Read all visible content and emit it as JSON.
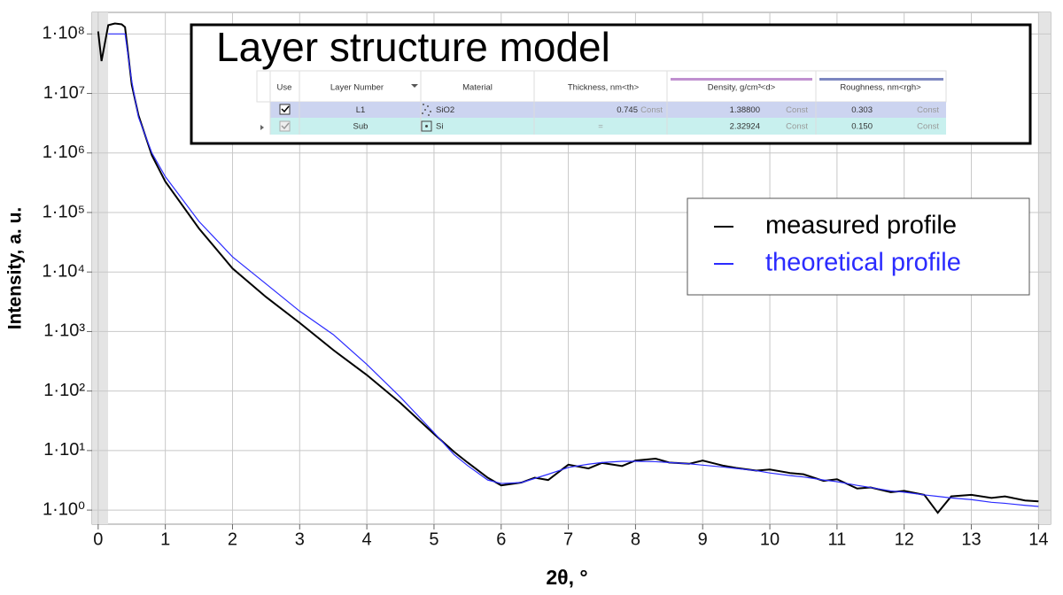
{
  "chart_data": {
    "type": "line",
    "xlabel": "2θ, °",
    "ylabel": "Intensity, a. u.",
    "log_y": true,
    "grid": true,
    "legend": "upper right",
    "xlim": [
      -0.09,
      14.18
    ],
    "ylim": [
      0.58,
      230000000
    ],
    "xticks": [
      0,
      1,
      2,
      3,
      4,
      5,
      6,
      7,
      8,
      9,
      10,
      11,
      12,
      13,
      14
    ],
    "yticks": [
      {
        "value": 1,
        "label": "1·10⁰"
      },
      {
        "value": 10,
        "label": "1·10¹"
      },
      {
        "value": 100,
        "label": "1·10²"
      },
      {
        "value": 1000,
        "label": "1·10³"
      },
      {
        "value": 10000,
        "label": "1·10⁴"
      },
      {
        "value": 100000,
        "label": "1·10⁵"
      },
      {
        "value": 1000000,
        "label": "1·10⁶"
      },
      {
        "value": 10000000,
        "label": "1·10⁷"
      },
      {
        "value": 100000000,
        "label": "1·10⁸"
      }
    ],
    "x": [
      0,
      0.05,
      0.15,
      0.25,
      0.35,
      0.4,
      0.5,
      0.6,
      0.8,
      1,
      1.5,
      2,
      2.5,
      3,
      3.5,
      4,
      4.5,
      5,
      5.3,
      5.5,
      5.8,
      6,
      6.3,
      6.5,
      6.7,
      7,
      7.3,
      7.5,
      7.8,
      8,
      8.3,
      8.5,
      8.8,
      9,
      9.3,
      9.5,
      9.8,
      10,
      10.3,
      10.5,
      10.8,
      11,
      11.3,
      11.5,
      11.8,
      12,
      12.3,
      12.5,
      12.7,
      13,
      13.3,
      13.5,
      13.8,
      14
    ],
    "series": [
      {
        "name": "measured profile",
        "color": "#000000",
        "values": [
          110000000,
          35000000,
          140000000,
          150000000,
          145000000,
          130000000,
          14000000,
          4300000,
          910000,
          330000,
          54000,
          11500,
          3800,
          1400,
          490,
          186,
          63,
          19,
          9.5,
          6.3,
          3.5,
          2.6,
          2.9,
          3.5,
          3.2,
          5.8,
          5.0,
          6.2,
          5.5,
          6.8,
          7.3,
          6.3,
          6.0,
          6.8,
          5.6,
          5.1,
          4.6,
          4.8,
          4.2,
          4.0,
          3.1,
          3.3,
          2.3,
          2.4,
          2.0,
          2.1,
          1.8,
          0.9,
          1.7,
          1.8,
          1.6,
          1.7,
          1.45,
          1.4
        ]
      },
      {
        "name": "theoretical profile",
        "color": "#2b2bff",
        "values": [
          null,
          null,
          100000000,
          100000000,
          100000000,
          100000000,
          16000000,
          4000000,
          1000000,
          400000,
          71000,
          18000,
          6300,
          2200,
          890,
          280,
          79,
          20,
          8.5,
          5.6,
          3.2,
          2.8,
          2.9,
          3.4,
          4.0,
          5.2,
          5.9,
          6.3,
          6.6,
          6.6,
          6.5,
          6.3,
          6.0,
          5.7,
          5.3,
          5.0,
          4.6,
          4.2,
          3.8,
          3.6,
          3.2,
          3.0,
          2.6,
          2.4,
          2.1,
          2.0,
          1.8,
          1.7,
          1.6,
          1.5,
          1.35,
          1.3,
          1.2,
          1.15
        ]
      }
    ],
    "inset": {
      "title": "Layer structure model",
      "table": {
        "header": [
          "Use",
          "Layer Number",
          "Material",
          "Thickness, nm<th>",
          "Density, g/cm³<d>",
          "Roughness, nm<rgh>"
        ],
        "rows": [
          [
            "L1",
            "SiO2",
            "0.745",
            "Const",
            "1.38800",
            "Const",
            "0.303",
            "Const"
          ],
          [
            "Sub",
            "Si",
            "=",
            "2.32924",
            "Const",
            "0.150",
            "Const"
          ]
        ]
      }
    }
  }
}
